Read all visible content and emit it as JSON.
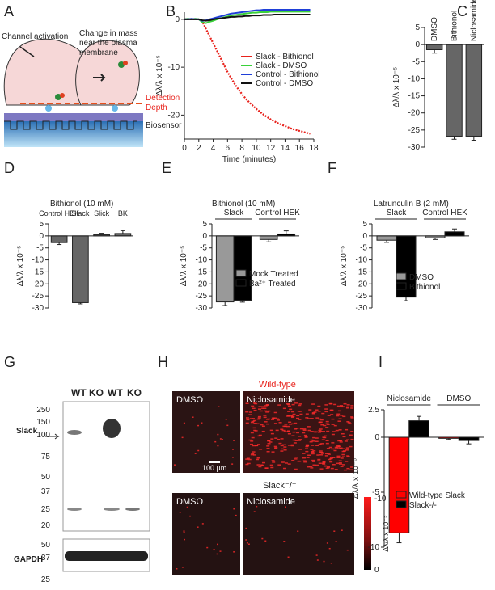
{
  "panel_labels": [
    "A",
    "B",
    "C",
    "D",
    "E",
    "F",
    "G",
    "H",
    "I"
  ],
  "schematic": {
    "activation": "Channel activation",
    "mass_text": [
      "Change in mass",
      "near the plasma",
      "membrane"
    ],
    "depth": [
      "Detection",
      "Depth"
    ],
    "biosensor": "Biosensor"
  },
  "blot": {
    "lanes": [
      "WT",
      "KO",
      "WT",
      "KO"
    ],
    "markers": [
      250,
      150,
      100,
      75,
      50,
      37,
      25,
      20
    ],
    "lower_markers": [
      50,
      37,
      25
    ],
    "slack": "Slack",
    "gapdh": "GAPDH"
  },
  "images": {
    "wild_type": "Wild-type",
    "knockout": "Slack⁻/⁻",
    "panels": [
      "DMSO",
      "Niclosamide",
      "DMSO",
      "Niclosamide"
    ],
    "scale_bar": "100 µm",
    "colorbar_labels": [
      -10,
      0
    ],
    "colorbar_title": "Δλ/λ x 10⁻⁵"
  },
  "chart_data": [
    {
      "type": "line",
      "x_label": "Time (minutes)",
      "y_label": "Δλ/λ x 10⁻⁵",
      "x": [
        0,
        0.5,
        1,
        1.5,
        2,
        2.5,
        3,
        3.5,
        4,
        4.5,
        5,
        5.5,
        6,
        6.5,
        7,
        7.5,
        8,
        8.5,
        9,
        9.5,
        10,
        10.5,
        11,
        11.5,
        12,
        12.5,
        13,
        13.5,
        14,
        14.5,
        15,
        15.5,
        16,
        16.5,
        17,
        17.5
      ],
      "xlim": [
        0,
        18
      ],
      "xticks": [
        0,
        2,
        4,
        6,
        8,
        10,
        12,
        14,
        16,
        18
      ],
      "ylim": [
        -25,
        1.5
      ],
      "yticks": [
        0,
        -10,
        -20
      ],
      "series": [
        {
          "name": "Slack - Bithionol",
          "color": "#e8221c",
          "values": [
            0,
            0,
            0,
            0,
            0,
            -0.5,
            -2,
            -3.5,
            -5,
            -6.5,
            -8,
            -9.5,
            -11,
            -12.3,
            -13.5,
            -14.6,
            -15.6,
            -16.5,
            -17.3,
            -18,
            -18.7,
            -19.3,
            -19.9,
            -20.4,
            -20.9,
            -21.3,
            -21.7,
            -22,
            -22.3,
            -22.6,
            -22.9,
            -23.1,
            -23.3,
            -23.5,
            -23.7,
            -23.9
          ]
        },
        {
          "name": "Slack - DMSO",
          "color": "#3ad13a",
          "values": [
            0,
            0.1,
            0,
            0.1,
            0,
            -0.6,
            -0.8,
            -0.5,
            -0.3,
            0,
            0.2,
            0.4,
            0.6,
            0.8,
            0.9,
            1,
            1.1,
            1.2,
            1.3,
            1.4,
            1.4,
            1.5,
            1.5,
            1.5,
            1.6,
            1.6,
            1.6,
            1.6,
            1.6,
            1.6,
            1.6,
            1.6,
            1.6,
            1.6,
            1.6,
            1.6
          ]
        },
        {
          "name": "Control - Bithionol",
          "color": "#1f3fd8",
          "values": [
            0,
            0,
            0.1,
            0,
            0,
            -0.3,
            -0.2,
            0,
            0.2,
            0.4,
            0.6,
            0.8,
            1,
            1.2,
            1.3,
            1.4,
            1.5,
            1.6,
            1.7,
            1.8,
            1.9,
            1.9,
            2,
            2,
            2,
            2,
            2,
            2,
            2,
            2,
            2,
            2,
            2,
            2,
            2,
            2
          ]
        },
        {
          "name": "Control - DMSO",
          "color": "#111111",
          "values": [
            0,
            0,
            0,
            0,
            0,
            -0.2,
            -0.3,
            -0.2,
            0,
            0.1,
            0.2,
            0.3,
            0.4,
            0.5,
            0.5,
            0.6,
            0.6,
            0.7,
            0.7,
            0.8,
            0.8,
            0.8,
            0.9,
            0.9,
            0.9,
            1,
            1,
            1,
            1,
            1,
            1,
            1,
            1,
            1,
            1,
            1
          ]
        }
      ]
    },
    {
      "type": "bar",
      "y_label": "Δλ/λ x 10⁻⁵",
      "categories": [
        "DMSO",
        "Bithionol",
        "Niclosamide"
      ],
      "values": [
        -1.5,
        -26.8,
        -26.8
      ],
      "errors": [
        1,
        0.9,
        1.2
      ],
      "color": "#666666",
      "ylim": [
        -30,
        5
      ],
      "yticks": [
        5,
        0,
        -5,
        -10,
        -15,
        -20,
        -25,
        -30
      ]
    },
    {
      "type": "bar",
      "title": "Bithionol (10 mM)",
      "y_label": "Δλ/λ x 10⁻⁵",
      "categories": [
        "Control HEK",
        "Slack",
        "Slick",
        "BK"
      ],
      "values": [
        -2.8,
        -27.8,
        0.5,
        1
      ],
      "errors": [
        0.8,
        0.5,
        0.6,
        1.2
      ],
      "color": "#666666",
      "ylim": [
        -30,
        5
      ],
      "yticks": [
        5,
        0,
        -5,
        -10,
        -15,
        -20,
        -25,
        -30
      ]
    },
    {
      "type": "grouped_bar",
      "title": "Bithionol (10 mM)",
      "y_label": "Δλ/λ x 10⁻⁵",
      "categories": [
        "Slack",
        "Control HEK"
      ],
      "ylim": [
        -30,
        5
      ],
      "yticks": [
        5,
        0,
        -5,
        -10,
        -15,
        -20,
        -25,
        -30
      ],
      "series": [
        {
          "name": "Mock Treated",
          "color": "#999999",
          "values": [
            -27.5,
            -1.5
          ],
          "errors": [
            1.5,
            1
          ]
        },
        {
          "name": "Ba²⁺ Treated",
          "color": "#000000",
          "values": [
            -26.8,
            0.8
          ],
          "errors": [
            0.8,
            1.3
          ]
        }
      ]
    },
    {
      "type": "grouped_bar",
      "title": "Latrunculin B (2 mM)",
      "y_label": "Δλ/λ x 10⁻⁵",
      "categories": [
        "Slack",
        "Control HEK"
      ],
      "ylim": [
        -30,
        5
      ],
      "yticks": [
        5,
        0,
        -5,
        -10,
        -15,
        -20,
        -25,
        -30
      ],
      "series": [
        {
          "name": "DMSO",
          "color": "#999999",
          "values": [
            -1.8,
            -0.8
          ],
          "errors": [
            0.9,
            0.7
          ]
        },
        {
          "name": "Bithionol",
          "color": "#000000",
          "values": [
            -25.5,
            1.7
          ],
          "errors": [
            1.5,
            1.2
          ]
        }
      ]
    },
    {
      "type": "grouped_bar",
      "y_label": "Δλ/λ x 10⁻⁵",
      "categories": [
        "Niclosamide",
        "DMSO"
      ],
      "ylim": [
        -10,
        2.5
      ],
      "yticks": [
        2.5,
        0,
        -5,
        -10
      ],
      "series": [
        {
          "name": "Wild-type Slack",
          "color": "#ff0000",
          "values": [
            -8.7,
            -0.1
          ],
          "errors": [
            0.9,
            0.1
          ]
        },
        {
          "name": "Slack-/-",
          "color": "#000000",
          "values": [
            1.5,
            -0.3
          ],
          "errors": [
            0.4,
            0.3
          ]
        }
      ]
    }
  ]
}
